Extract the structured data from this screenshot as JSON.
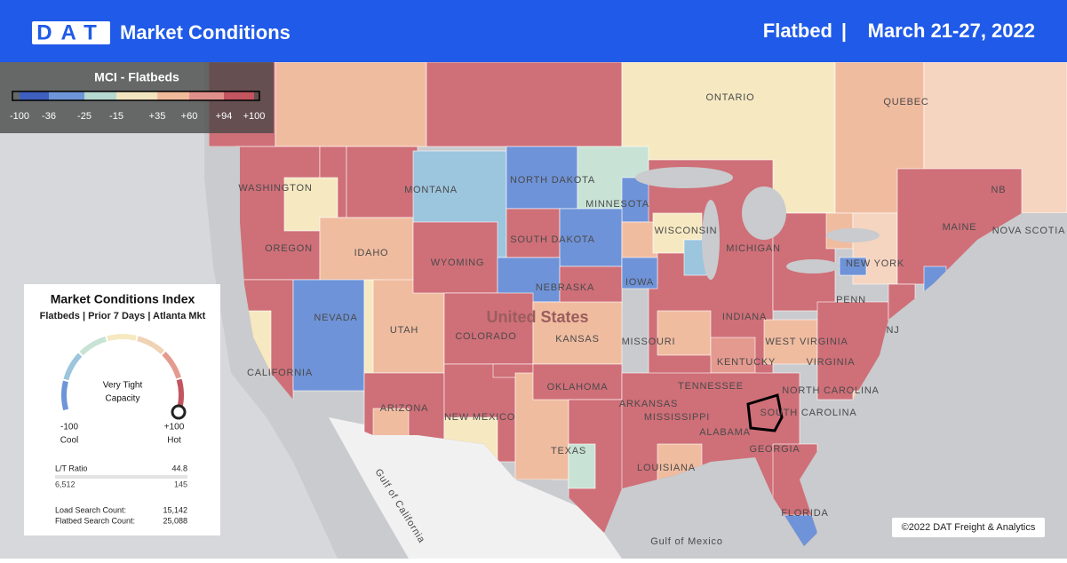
{
  "header": {
    "logo": "DAT",
    "title": "Market Conditions",
    "equipment": "Flatbed",
    "separator": "|",
    "dates": "March 21-27, 2022"
  },
  "legend": {
    "title": "MCI - Flatbeds",
    "ticks": [
      "-100",
      "-36",
      "-25",
      "-15",
      "+35",
      "+60",
      "+94",
      "+100"
    ]
  },
  "card": {
    "title": "Market Conditions Index",
    "subtitle": "Flatbeds | Prior 7 Days | Atlanta Mkt",
    "status": "Very Tight",
    "status2": "Capacity",
    "min": "-100",
    "min_label": "Cool",
    "max": "+100",
    "max_label": "Hot",
    "lt_label": "L/T Ratio",
    "lt_value": "44.8",
    "loads": "6,512",
    "trucks": "145",
    "load_search_label": "Load Search Count:",
    "load_search": "15,142",
    "flatbed_search_label": "Flatbed Search Count:",
    "flatbed_search": "25,088"
  },
  "map_labels": [
    "ONTARIO",
    "QUEBEC",
    "WASHINGTON",
    "MONTANA",
    "NORTH DAKOTA",
    "MINNESOTA",
    "WISCONSIN",
    "MICHIGAN",
    "SOUTH DAKOTA",
    "OREGON",
    "IDAHO",
    "WYOMING",
    "NEBRASKA",
    "IOWA",
    "NEVADA",
    "UTAH",
    "COLORADO",
    "KANSAS",
    "MISSOURI",
    "INDIANA",
    "CALIFORNIA",
    "ARIZONA",
    "NEW MEXICO",
    "OKLAHOMA",
    "ARKANSAS",
    "TEXAS",
    "LOUISIANA",
    "MISSISSIPPI",
    "ALABAMA",
    "GEORGIA",
    "FLORIDA",
    "TENNESSEE",
    "KENTUCKY",
    "WEST VIRGINIA",
    "VIRGINIA",
    "NORTH CAROLINA",
    "SOUTH CAROLINA",
    "PENN",
    "NEW YORK",
    "MAINE",
    "NB",
    "NOVA SCOTIA",
    "NJ",
    "United States",
    "Gulf of California",
    "Gulf of Mexico"
  ],
  "copyright": "©2022 DAT Freight & Analytics"
}
